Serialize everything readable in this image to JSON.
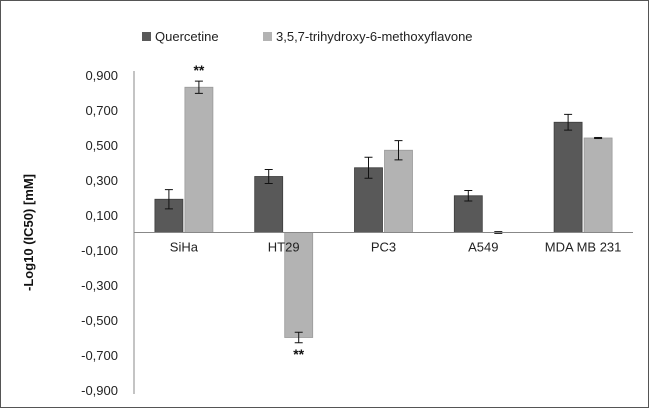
{
  "chart_data": {
    "type": "bar",
    "categories": [
      "SiHa",
      "HT29",
      "PC3",
      "A549",
      "MDA MB 231"
    ],
    "series": [
      {
        "name": "Quercetine",
        "color": "#595959",
        "values": [
          0.19,
          0.32,
          0.37,
          0.21,
          0.63
        ],
        "errors": [
          0.055,
          0.04,
          0.06,
          0.03,
          0.045
        ]
      },
      {
        "name": "3,5,7-trihydroxy-6-methoxyflavone",
        "color": "#b3b3b3",
        "values": [
          0.83,
          -0.6,
          0.47,
          0.0,
          0.54
        ],
        "errors": [
          0.035,
          0.03,
          0.055,
          0.005,
          0.003
        ]
      }
    ],
    "ylabel": "-Log10 (IC50) [mM]",
    "ylim": [
      -0.9,
      0.9
    ],
    "yticks": [
      "0,900",
      "0,700",
      "0,500",
      "0,300",
      "0,100",
      "-0,100",
      "-0,300",
      "-0,500",
      "-0,700",
      "-0,900"
    ],
    "ytick_values": [
      0.9,
      0.7,
      0.5,
      0.3,
      0.1,
      -0.1,
      -0.3,
      -0.5,
      -0.7,
      -0.9
    ],
    "annotations": [
      {
        "category": "SiHa",
        "series": 1,
        "text": "**",
        "position": "above"
      },
      {
        "category": "HT29",
        "series": 1,
        "text": "**",
        "position": "below"
      }
    ],
    "grid": false,
    "legend_position": "top"
  }
}
